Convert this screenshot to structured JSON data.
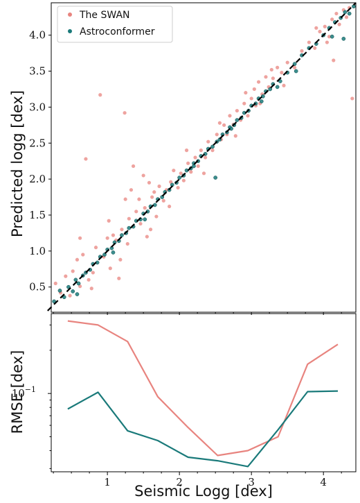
{
  "chart_data": [
    {
      "type": "scatter",
      "xlabel": "",
      "ylabel": "Predicted logg [dex]",
      "xlim": [
        0.22,
        4.45
      ],
      "ylim": [
        0.15,
        4.45
      ],
      "xticks": [],
      "yticks": [
        "0.5",
        "1.0",
        "1.5",
        "2.0",
        "2.5",
        "3.0",
        "3.5",
        "4.0"
      ],
      "legend": {
        "placement": "top-left",
        "entries": [
          "The SWAN",
          "Astroconformer"
        ]
      },
      "reference_line": "y = x (dashed)",
      "series": [
        {
          "name": "The SWAN",
          "color": "#e8847f",
          "points": [
            [
              0.28,
              0.55
            ],
            [
              0.35,
              0.42
            ],
            [
              0.42,
              0.65
            ],
            [
              0.48,
              0.38
            ],
            [
              0.52,
              0.72
            ],
            [
              0.58,
              0.88
            ],
            [
              0.62,
              0.51
            ],
            [
              0.66,
              0.95
            ],
            [
              0.7,
              2.28
            ],
            [
              0.74,
              0.6
            ],
            [
              0.8,
              0.7
            ],
            [
              0.84,
              1.05
            ],
            [
              0.9,
              3.17
            ],
            [
              0.95,
              0.92
            ],
            [
              1.0,
              1.18
            ],
            [
              1.04,
              0.76
            ],
            [
              1.08,
              1.22
            ],
            [
              1.12,
              1.15
            ],
            [
              1.16,
              0.62
            ],
            [
              1.2,
              1.3
            ],
            [
              1.24,
              2.92
            ],
            [
              1.25,
              1.72
            ],
            [
              1.28,
              1.1
            ],
            [
              1.3,
              1.45
            ],
            [
              1.33,
              1.85
            ],
            [
              1.36,
              2.18
            ],
            [
              1.4,
              1.55
            ],
            [
              1.44,
              1.72
            ],
            [
              1.46,
              1.38
            ],
            [
              1.5,
              2.05
            ],
            [
              1.52,
              1.6
            ],
            [
              1.55,
              1.2
            ],
            [
              1.58,
              1.95
            ],
            [
              1.62,
              1.75
            ],
            [
              1.65,
              1.82
            ],
            [
              1.68,
              1.48
            ],
            [
              1.72,
              1.9
            ],
            [
              1.78,
              1.7
            ],
            [
              1.82,
              1.85
            ],
            [
              1.88,
              1.96
            ],
            [
              1.92,
              2.12
            ],
            [
              1.98,
              1.88
            ],
            [
              2.02,
              2.08
            ],
            [
              2.06,
              1.98
            ],
            [
              2.12,
              2.22
            ],
            [
              2.16,
              2.1
            ],
            [
              2.22,
              2.3
            ],
            [
              2.26,
              2.18
            ],
            [
              2.3,
              2.4
            ],
            [
              2.36,
              2.3
            ],
            [
              2.4,
              2.52
            ],
            [
              2.46,
              2.4
            ],
            [
              2.52,
              2.62
            ],
            [
              2.58,
              2.55
            ],
            [
              2.62,
              2.75
            ],
            [
              2.66,
              2.62
            ],
            [
              2.7,
              2.88
            ],
            [
              2.75,
              2.76
            ],
            [
              2.8,
              2.95
            ],
            [
              2.85,
              2.82
            ],
            [
              2.9,
              3.05
            ],
            [
              2.92,
              3.2
            ],
            [
              2.95,
              2.88
            ],
            [
              3.0,
              3.12
            ],
            [
              3.04,
              3.25
            ],
            [
              3.06,
              3.02
            ],
            [
              3.1,
              3.35
            ],
            [
              3.15,
              3.18
            ],
            [
              3.2,
              3.42
            ],
            [
              3.24,
              3.28
            ],
            [
              3.3,
              3.4
            ],
            [
              3.36,
              3.55
            ],
            [
              3.42,
              3.48
            ],
            [
              3.5,
              3.62
            ],
            [
              3.6,
              3.55
            ],
            [
              3.7,
              3.78
            ],
            [
              3.8,
              3.9
            ],
            [
              3.88,
              3.82
            ],
            [
              3.95,
              4.05
            ],
            [
              4.02,
              4.12
            ],
            [
              4.08,
              3.98
            ],
            [
              4.12,
              4.22
            ],
            [
              4.18,
              4.3
            ],
            [
              4.22,
              4.15
            ],
            [
              4.28,
              4.35
            ],
            [
              4.32,
              4.25
            ],
            [
              4.36,
              4.38
            ],
            [
              4.4,
              3.12
            ],
            [
              4.14,
              3.65
            ],
            [
              0.62,
              1.18
            ],
            [
              0.78,
              0.48
            ],
            [
              1.02,
              1.42
            ],
            [
              1.18,
              0.88
            ],
            [
              1.6,
              1.3
            ],
            [
              1.86,
              1.62
            ],
            [
              2.1,
              2.4
            ],
            [
              2.34,
              2.08
            ],
            [
              2.56,
              2.78
            ],
            [
              2.78,
              2.6
            ],
            [
              3.12,
              3.05
            ],
            [
              3.28,
              3.52
            ],
            [
              3.45,
              3.3
            ],
            [
              3.9,
              4.1
            ],
            [
              4.05,
              3.9
            ]
          ]
        },
        {
          "name": "Astroconformer",
          "color": "#1a7a7a",
          "points": [
            [
              0.26,
              0.3
            ],
            [
              0.34,
              0.45
            ],
            [
              0.4,
              0.36
            ],
            [
              0.46,
              0.5
            ],
            [
              0.52,
              0.44
            ],
            [
              0.56,
              0.6
            ],
            [
              0.6,
              0.55
            ],
            [
              0.66,
              0.66
            ],
            [
              0.7,
              0.7
            ],
            [
              0.76,
              0.74
            ],
            [
              0.8,
              0.82
            ],
            [
              0.86,
              0.84
            ],
            [
              0.9,
              0.92
            ],
            [
              0.96,
              0.95
            ],
            [
              1.0,
              1.02
            ],
            [
              1.06,
              1.04
            ],
            [
              1.1,
              1.12
            ],
            [
              1.16,
              1.14
            ],
            [
              1.2,
              1.22
            ],
            [
              1.26,
              1.25
            ],
            [
              1.3,
              1.32
            ],
            [
              1.36,
              1.34
            ],
            [
              1.4,
              1.42
            ],
            [
              1.46,
              1.44
            ],
            [
              1.5,
              1.52
            ],
            [
              1.56,
              1.55
            ],
            [
              1.6,
              1.62
            ],
            [
              1.66,
              1.64
            ],
            [
              1.7,
              1.72
            ],
            [
              1.76,
              1.75
            ],
            [
              1.8,
              1.82
            ],
            [
              1.86,
              1.85
            ],
            [
              1.9,
              1.92
            ],
            [
              1.96,
              1.95
            ],
            [
              2.0,
              2.02
            ],
            [
              2.06,
              2.05
            ],
            [
              2.1,
              2.12
            ],
            [
              2.16,
              2.15
            ],
            [
              2.2,
              2.22
            ],
            [
              2.26,
              2.25
            ],
            [
              2.3,
              2.32
            ],
            [
              2.36,
              2.35
            ],
            [
              2.4,
              2.42
            ],
            [
              2.46,
              2.45
            ],
            [
              2.5,
              2.02
            ],
            [
              2.52,
              2.52
            ],
            [
              2.56,
              2.55
            ],
            [
              2.6,
              2.62
            ],
            [
              2.66,
              2.65
            ],
            [
              2.7,
              2.72
            ],
            [
              2.76,
              2.75
            ],
            [
              2.8,
              2.82
            ],
            [
              2.86,
              2.85
            ],
            [
              2.9,
              2.92
            ],
            [
              2.96,
              2.95
            ],
            [
              3.0,
              3.02
            ],
            [
              3.06,
              3.05
            ],
            [
              3.1,
              3.12
            ],
            [
              3.16,
              3.15
            ],
            [
              3.2,
              3.22
            ],
            [
              3.26,
              3.25
            ],
            [
              3.3,
              3.32
            ],
            [
              3.36,
              3.28
            ],
            [
              3.4,
              3.36
            ],
            [
              3.5,
              3.48
            ],
            [
              3.6,
              3.6
            ],
            [
              3.7,
              3.72
            ],
            [
              3.8,
              3.82
            ],
            [
              3.9,
              3.88
            ],
            [
              4.0,
              4.0
            ],
            [
              4.08,
              4.1
            ],
            [
              4.16,
              4.18
            ],
            [
              4.24,
              4.24
            ],
            [
              4.3,
              4.32
            ],
            [
              4.36,
              4.3
            ],
            [
              4.42,
              4.4
            ],
            [
              0.58,
              0.4
            ],
            [
              1.08,
              0.98
            ],
            [
              1.52,
              1.44
            ],
            [
              2.2,
              2.18
            ],
            [
              2.72,
              2.7
            ],
            [
              3.14,
              3.08
            ],
            [
              3.62,
              3.5
            ],
            [
              4.12,
              3.98
            ],
            [
              4.28,
              3.95
            ]
          ]
        }
      ]
    },
    {
      "type": "line",
      "xlabel": "Seismic Logg [dex]",
      "ylabel": "RMSE [dex]",
      "xlim": [
        0.22,
        4.45
      ],
      "ylim": [
        0.0285,
        0.36
      ],
      "yscale": "log",
      "xticks": [
        "1",
        "2",
        "3",
        "4"
      ],
      "yticks": [
        "10^-1"
      ],
      "series": [
        {
          "name": "The SWAN",
          "color": "#e8847f",
          "x": [
            0.45,
            0.87,
            1.28,
            1.7,
            2.12,
            2.53,
            2.95,
            3.37,
            3.78,
            4.2
          ],
          "values": [
            0.32,
            0.3,
            0.23,
            0.095,
            0.058,
            0.037,
            0.04,
            0.05,
            0.16,
            0.22
          ]
        },
        {
          "name": "Astroconformer",
          "color": "#1a7a7a",
          "x": [
            0.45,
            0.87,
            1.28,
            1.7,
            2.12,
            2.53,
            2.95,
            3.37,
            3.78,
            4.2
          ],
          "values": [
            0.078,
            0.102,
            0.055,
            0.047,
            0.036,
            0.034,
            0.031,
            0.056,
            0.103,
            0.104
          ]
        }
      ]
    }
  ]
}
